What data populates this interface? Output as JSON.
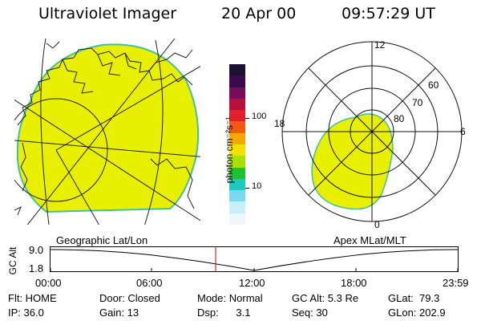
{
  "header": {
    "instrument": "Ultraviolet Imager",
    "date": "20 Apr 00",
    "time": "09:57:29 UT"
  },
  "colorbar": {
    "unit_label": "photon cm⁻²s⁻¹",
    "tick_100": "100",
    "tick_10": "10",
    "colors": [
      "#1c1033",
      "#3a0a4a",
      "#7a0a5a",
      "#b8103a",
      "#e0202a",
      "#f25a10",
      "#f7a800",
      "#f2e000",
      "#a8e000",
      "#20c030",
      "#20c8c0",
      "#7ad8f0",
      "#c8eef8",
      "#eef8fc"
    ]
  },
  "polar_plot": {
    "mlt_labels": {
      "top": "12",
      "bottom": "0",
      "left": "18",
      "right": "6"
    },
    "lat_labels": [
      "60",
      "70",
      "80"
    ]
  },
  "projections": {
    "left": "Geographic Lat/Lon",
    "right": "Apex MLat/MLT"
  },
  "altitude_plot": {
    "axis_title": "GC Alt",
    "y_ticks": [
      "9.0",
      "1.8"
    ],
    "x_ticks": [
      "00:00",
      "06:00",
      "12:00",
      "18:00",
      "23:59"
    ]
  },
  "info": {
    "row1": {
      "flt": "Flt: HOME",
      "door": "Door: Closed",
      "mode": "Mode: Normal",
      "gcalt": "GC Alt: 5.3 Re",
      "glat": "GLat:  79.3"
    },
    "row2": {
      "ip": "IP: 36.0",
      "gain": "Gain: 13",
      "dsp": "Dsp:      3.1",
      "seq": "Seq: 30",
      "glon": "GLon: 202.9"
    }
  },
  "palette": {
    "aurora_fill": "#e8f000",
    "aurora_edge": "#40c0a0",
    "current_time_marker": "#cc0000"
  }
}
